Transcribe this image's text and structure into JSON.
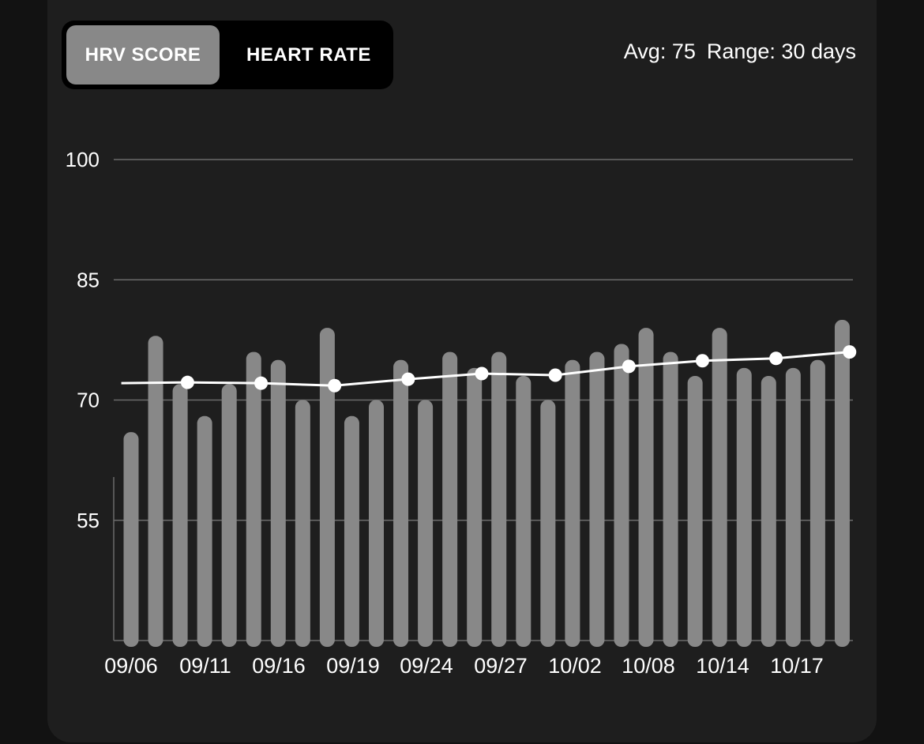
{
  "tabs": {
    "hrv_label": "HRV SCORE",
    "heart_rate_label": "HEART RATE"
  },
  "summary": {
    "avg": "Avg: 75",
    "range": "Range: 30 days"
  },
  "colors": {
    "bars": "#888888",
    "line": "#ffffff",
    "grid": "#6a6a6a",
    "card": "#1e1e1e",
    "toggle_active": "#888888"
  },
  "chart_data": {
    "type": "bar",
    "ylim": [
      40,
      100
    ],
    "yticks": [
      55,
      70,
      85,
      100
    ],
    "grid": true,
    "x_tick_labels": [
      "09/06",
      "09/11",
      "09/16",
      "09/19",
      "09/24",
      "09/27",
      "10/02",
      "10/08",
      "10/14",
      "10/17"
    ],
    "series": [
      {
        "type": "bar",
        "values": [
          66,
          78,
          72,
          68,
          72,
          76,
          75,
          70,
          79,
          68,
          70,
          75,
          70,
          76,
          74,
          76,
          73,
          70,
          75,
          76,
          77,
          79,
          76,
          73,
          79,
          74,
          73,
          74,
          75,
          80
        ]
      },
      {
        "type": "line",
        "points": [
          {
            "index": -0.4,
            "value": 72.1
          },
          {
            "index": 2.3,
            "value": 72.2
          },
          {
            "index": 5.3,
            "value": 72.1
          },
          {
            "index": 8.3,
            "value": 71.8
          },
          {
            "index": 11.3,
            "value": 72.6
          },
          {
            "index": 14.3,
            "value": 73.3
          },
          {
            "index": 17.3,
            "value": 73.1
          },
          {
            "index": 20.3,
            "value": 74.2
          },
          {
            "index": 23.3,
            "value": 74.9
          },
          {
            "index": 26.3,
            "value": 75.2
          },
          {
            "index": 29.3,
            "value": 76.0
          }
        ]
      }
    ]
  }
}
